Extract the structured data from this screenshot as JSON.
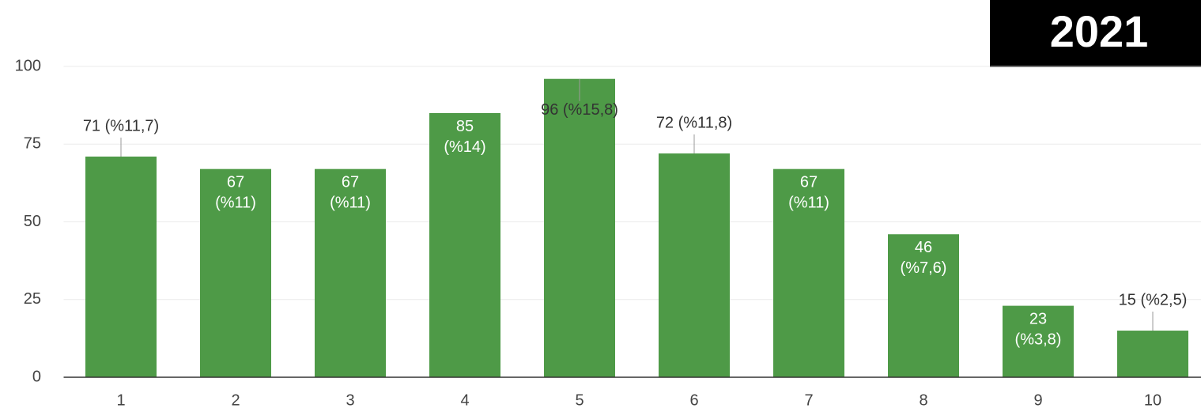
{
  "chart_data": {
    "type": "bar",
    "badge": "2021",
    "categories": [
      "1",
      "2",
      "3",
      "4",
      "5",
      "6",
      "7",
      "8",
      "9",
      "10"
    ],
    "values": [
      71,
      67,
      67,
      85,
      96,
      72,
      67,
      46,
      23,
      15
    ],
    "value_labels": [
      "71 (%11,7)",
      "67 (%11)",
      "67 (%11)",
      "85 (%14)",
      "96 (%15,8)",
      "72 (%11,8)",
      "67 (%11)",
      "46 (%7,6)",
      "23 (%3,8)",
      "15 (%2,5)"
    ],
    "color": "#4e9a47",
    "ylim": [
      0,
      100
    ],
    "yticks": [
      0,
      25,
      50,
      75,
      100
    ],
    "grid": true
  }
}
